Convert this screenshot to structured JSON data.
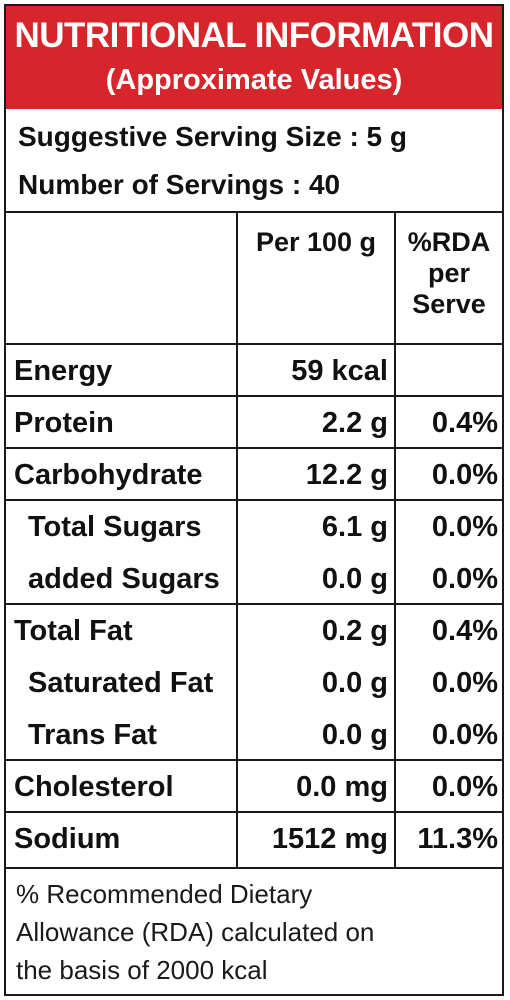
{
  "header": {
    "title": "NUTRITIONAL INFORMATION",
    "subtitle": "(Approximate Values)"
  },
  "serving": {
    "size_line": "Suggestive Serving Size : 5 g",
    "servings_line": "Number of Servings : 40"
  },
  "table": {
    "col_per100": "Per 100 g",
    "col_rda_lines": [
      "%RDA",
      "per",
      "Serve"
    ],
    "rows": [
      {
        "name": "Energy",
        "per100": "59 kcal",
        "rda": ""
      },
      {
        "name": "Protein",
        "per100": "2.2 g",
        "rda": "0.4%"
      },
      {
        "name": "Carbohydrate",
        "per100": "12.2 g",
        "rda": "0.0%"
      },
      {
        "name": "Total Sugars",
        "per100": "6.1 g",
        "rda": "0.0%"
      },
      {
        "name": "added Sugars",
        "per100": "0.0 g",
        "rda": "0.0%"
      },
      {
        "name": "Total Fat",
        "per100": "0.2 g",
        "rda": "0.4%"
      },
      {
        "name": "Saturated Fat",
        "per100": "0.0 g",
        "rda": "0.0%"
      },
      {
        "name": "Trans Fat",
        "per100": "0.0 g",
        "rda": "0.0%"
      },
      {
        "name": "Cholesterol",
        "per100": "0.0 mg",
        "rda": "0.0%"
      },
      {
        "name": "Sodium",
        "per100": "1512 mg",
        "rda": "11.3%"
      }
    ]
  },
  "footnote": {
    "lines": [
      "% Recommended Dietary",
      "Allowance (RDA) calculated on",
      "the basis of 2000 kcal"
    ]
  },
  "colors": {
    "header_bg": "#d7262b",
    "header_text": "#ffffff",
    "border": "#1a1a1a"
  }
}
